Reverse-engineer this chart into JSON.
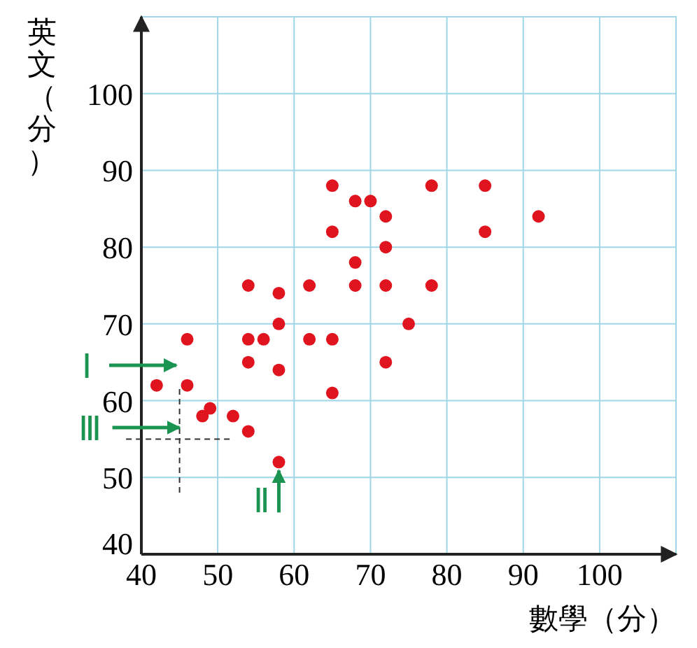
{
  "chart_data": {
    "type": "scatter",
    "xlabel": "數學（分）",
    "ylabel": "英文（分）",
    "xlim": [
      40,
      110
    ],
    "ylim": [
      40,
      110
    ],
    "xticks": [
      40,
      50,
      60,
      70,
      80,
      90,
      100
    ],
    "yticks": [
      40,
      50,
      60,
      70,
      80,
      90,
      100
    ],
    "grid": true,
    "marker": "circle",
    "series": [
      {
        "color": "#e0141e",
        "x": [
          65,
          68,
          70,
          72,
          65,
          72,
          68,
          54,
          58,
          62,
          68,
          72,
          78,
          78,
          85,
          85,
          92,
          75,
          58,
          46,
          54,
          56,
          62,
          65,
          54,
          58,
          72,
          42,
          46,
          65,
          49,
          48,
          52,
          54,
          58
        ],
        "values": [
          88,
          86,
          86,
          84,
          82,
          80,
          78,
          75,
          74,
          75,
          75,
          75,
          88,
          75,
          88,
          82,
          84,
          70,
          70,
          68,
          68,
          68,
          68,
          68,
          65,
          64,
          65,
          62,
          62,
          61,
          59,
          58,
          58,
          56,
          52
        ]
      }
    ],
    "ref_lines": [
      {
        "axis": "x",
        "value": 45,
        "color": "#333333",
        "line_style": "dashed"
      },
      {
        "axis": "y",
        "value": 55,
        "color": "#333333",
        "line_style": "dashed"
      }
    ],
    "annotations": [
      "Ⅰ",
      {
        "text": "Ⅱ",
        "x": 58,
        "y": 52
      },
      {
        "text": "Ⅲ",
        "x": 45,
        "y": 56.5
      }
    ]
  }
}
